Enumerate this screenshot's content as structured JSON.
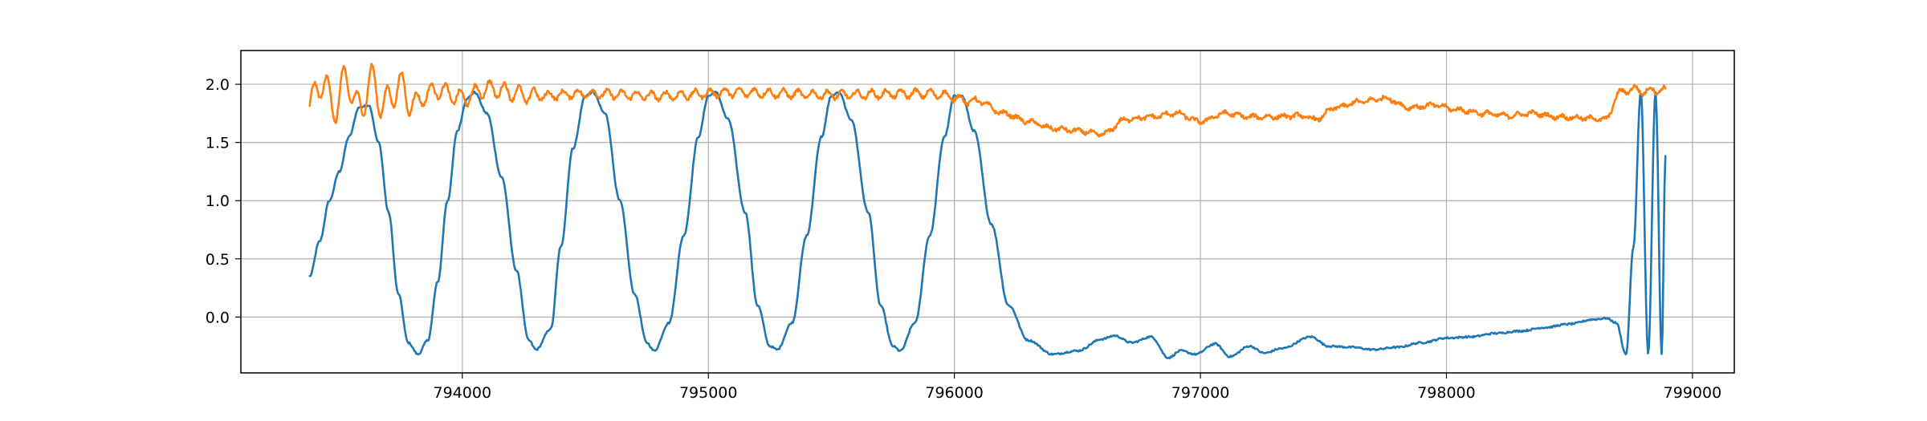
{
  "chart_data": {
    "type": "line",
    "title": "",
    "xlabel": "",
    "ylabel": "",
    "xlim": [
      793100,
      799170
    ],
    "ylim": [
      -0.48,
      2.29
    ],
    "grid": true,
    "legend": "none",
    "x_ticks": [
      794000,
      795000,
      796000,
      797000,
      798000,
      799000
    ],
    "x_tick_labels": [
      "794000",
      "795000",
      "796000",
      "797000",
      "798000",
      "799000"
    ],
    "y_ticks": [
      0.0,
      0.5,
      1.0,
      1.5,
      2.0
    ],
    "y_tick_labels": [
      "0.0",
      "0.5",
      "1.0",
      "1.5",
      "2.0"
    ],
    "series": [
      {
        "color": "#1f77b4",
        "points": [
          [
            793380,
            0.35
          ],
          [
            793420,
            0.65
          ],
          [
            793460,
            1.0
          ],
          [
            793500,
            1.25
          ],
          [
            793540,
            1.55
          ],
          [
            793580,
            1.8
          ],
          [
            793620,
            1.82
          ],
          [
            793660,
            1.5
          ],
          [
            793700,
            0.9
          ],
          [
            793740,
            0.2
          ],
          [
            793780,
            -0.22
          ],
          [
            793820,
            -0.32
          ],
          [
            793860,
            -0.2
          ],
          [
            793900,
            0.3
          ],
          [
            793940,
            1.0
          ],
          [
            793980,
            1.6
          ],
          [
            794020,
            1.88
          ],
          [
            794050,
            1.93
          ],
          [
            794100,
            1.75
          ],
          [
            794160,
            1.2
          ],
          [
            794220,
            0.4
          ],
          [
            794270,
            -0.2
          ],
          [
            794300,
            -0.28
          ],
          [
            794360,
            -0.1
          ],
          [
            794400,
            0.6
          ],
          [
            794450,
            1.45
          ],
          [
            794500,
            1.9
          ],
          [
            794530,
            1.93
          ],
          [
            794580,
            1.75
          ],
          [
            794640,
            1.0
          ],
          [
            794700,
            0.2
          ],
          [
            794750,
            -0.22
          ],
          [
            794780,
            -0.29
          ],
          [
            794840,
            -0.05
          ],
          [
            794900,
            0.7
          ],
          [
            794960,
            1.55
          ],
          [
            795000,
            1.9
          ],
          [
            795030,
            1.93
          ],
          [
            795080,
            1.7
          ],
          [
            795150,
            0.9
          ],
          [
            795200,
            0.1
          ],
          [
            795250,
            -0.25
          ],
          [
            795280,
            -0.28
          ],
          [
            795340,
            -0.05
          ],
          [
            795400,
            0.7
          ],
          [
            795460,
            1.55
          ],
          [
            795500,
            1.9
          ],
          [
            795530,
            1.93
          ],
          [
            795580,
            1.7
          ],
          [
            795650,
            0.9
          ],
          [
            795700,
            0.1
          ],
          [
            795750,
            -0.25
          ],
          [
            795780,
            -0.29
          ],
          [
            795840,
            -0.05
          ],
          [
            795900,
            0.7
          ],
          [
            795960,
            1.55
          ],
          [
            796000,
            1.9
          ],
          [
            796030,
            1.9
          ],
          [
            796080,
            1.6
          ],
          [
            796150,
            0.8
          ],
          [
            796220,
            0.1
          ],
          [
            796300,
            -0.2
          ],
          [
            796400,
            -0.32
          ],
          [
            796500,
            -0.29
          ],
          [
            796600,
            -0.19
          ],
          [
            796650,
            -0.16
          ],
          [
            796720,
            -0.22
          ],
          [
            796800,
            -0.17
          ],
          [
            796870,
            -0.35
          ],
          [
            796920,
            -0.29
          ],
          [
            796980,
            -0.32
          ],
          [
            797060,
            -0.23
          ],
          [
            797120,
            -0.34
          ],
          [
            797200,
            -0.25
          ],
          [
            797260,
            -0.31
          ],
          [
            797330,
            -0.27
          ],
          [
            797450,
            -0.17
          ],
          [
            797520,
            -0.25
          ],
          [
            797620,
            -0.26
          ],
          [
            797700,
            -0.28
          ],
          [
            797800,
            -0.26
          ],
          [
            797900,
            -0.22
          ],
          [
            798000,
            -0.18
          ],
          [
            798100,
            -0.17
          ],
          [
            798200,
            -0.14
          ],
          [
            798300,
            -0.12
          ],
          [
            798400,
            -0.09
          ],
          [
            798500,
            -0.06
          ],
          [
            798600,
            -0.02
          ],
          [
            798650,
            -0.01
          ],
          [
            798690,
            -0.05
          ],
          [
            798730,
            -0.32
          ],
          [
            798760,
            0.6
          ],
          [
            798790,
            1.93
          ],
          [
            798820,
            -0.32
          ],
          [
            798850,
            1.93
          ],
          [
            798875,
            -0.32
          ],
          [
            798890,
            1.38
          ]
        ]
      },
      {
        "color": "#ff7f0e",
        "points": [
          [
            793380,
            1.82
          ],
          [
            793430,
            2.03
          ],
          [
            793480,
            1.8
          ],
          [
            793530,
            2.05
          ],
          [
            793580,
            1.78
          ],
          [
            793630,
            2.03
          ],
          [
            793680,
            1.82
          ],
          [
            793740,
            1.98
          ],
          [
            793800,
            1.85
          ],
          [
            793900,
            1.95
          ],
          [
            794000,
            1.88
          ],
          [
            794100,
            1.96
          ],
          [
            794300,
            1.9
          ],
          [
            794500,
            1.92
          ],
          [
            794800,
            1.9
          ],
          [
            795100,
            1.93
          ],
          [
            795500,
            1.91
          ],
          [
            795900,
            1.92
          ],
          [
            796100,
            1.85
          ],
          [
            796200,
            1.75
          ],
          [
            796300,
            1.68
          ],
          [
            796400,
            1.62
          ],
          [
            796500,
            1.6
          ],
          [
            796600,
            1.57
          ],
          [
            796700,
            1.7
          ],
          [
            796800,
            1.72
          ],
          [
            796900,
            1.75
          ],
          [
            797000,
            1.68
          ],
          [
            797100,
            1.75
          ],
          [
            797200,
            1.72
          ],
          [
            797300,
            1.72
          ],
          [
            797400,
            1.73
          ],
          [
            797470,
            1.7
          ],
          [
            797550,
            1.8
          ],
          [
            797650,
            1.85
          ],
          [
            797750,
            1.88
          ],
          [
            797850,
            1.8
          ],
          [
            797950,
            1.82
          ],
          [
            798050,
            1.78
          ],
          [
            798150,
            1.75
          ],
          [
            798250,
            1.73
          ],
          [
            798350,
            1.75
          ],
          [
            798450,
            1.72
          ],
          [
            798550,
            1.71
          ],
          [
            798650,
            1.7
          ],
          [
            798700,
            1.92
          ],
          [
            798750,
            1.96
          ],
          [
            798800,
            1.94
          ],
          [
            798850,
            1.95
          ],
          [
            798890,
            1.95
          ]
        ]
      }
    ]
  }
}
